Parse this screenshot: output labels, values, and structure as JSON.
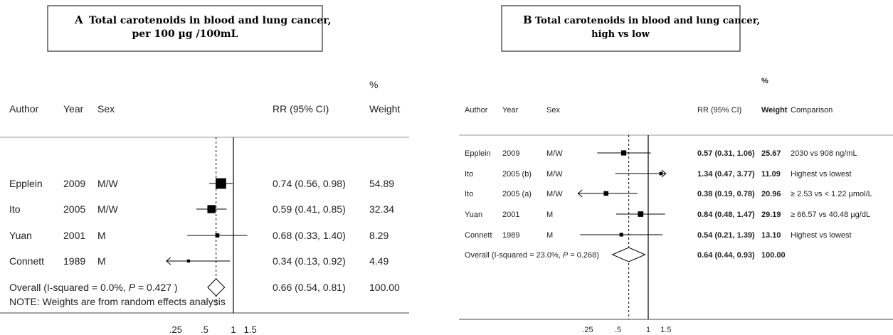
{
  "chart_data": [
    {
      "type": "forest",
      "title_line1": "Total carotenoids in blood and lung cancer,",
      "title_line2": "per 100 µg /100mL",
      "panel_label": "A",
      "headers": {
        "author": "Author",
        "year": "Year",
        "sex": "Sex",
        "rr": "RR (95% CI)",
        "weight_top": "%",
        "weight": "Weight"
      },
      "x_scale": "log",
      "x_ticks": [
        {
          "value": 0.25,
          "label": ".25"
        },
        {
          "value": 0.5,
          "label": ".5"
        },
        {
          "value": 1,
          "label": "1"
        },
        {
          "value": 1.5,
          "label": "1.5"
        }
      ],
      "x_range": [
        0.2,
        1.6
      ],
      "reference_line": 1,
      "studies": [
        {
          "author": "Epplein",
          "year": "2009",
          "sex": "M/W",
          "rr": 0.74,
          "lo": 0.56,
          "hi": 0.98,
          "rr_text": "0.74 (0.56, 0.98)",
          "weight": 54.89,
          "weight_text": "54.89"
        },
        {
          "author": "Ito",
          "year": "2005",
          "sex": "M/W",
          "rr": 0.59,
          "lo": 0.41,
          "hi": 0.85,
          "rr_text": "0.59 (0.41, 0.85)",
          "weight": 32.34,
          "weight_text": "32.34"
        },
        {
          "author": "Yuan",
          "year": "2001",
          "sex": "M",
          "rr": 0.68,
          "lo": 0.33,
          "hi": 1.4,
          "rr_text": "0.68 (0.33, 1.40)",
          "weight": 8.29,
          "weight_text": "8.29"
        },
        {
          "author": "Connett",
          "year": "1989",
          "sex": "M",
          "rr": 0.34,
          "lo": 0.13,
          "hi": 0.92,
          "rr_text": "0.34 (0.13, 0.92)",
          "weight": 4.49,
          "weight_text": "4.49"
        }
      ],
      "overall": {
        "label_pre": "Overall  (I-squared = 0.0%, ",
        "p_symbol": "P",
        "label_post": " = 0.427 )",
        "rr": 0.66,
        "lo": 0.54,
        "hi": 0.81,
        "rr_text": "0.66 (0.54, 0.81)",
        "weight_text": "100.00"
      },
      "note": "NOTE: Weights are from random effects analysis"
    },
    {
      "type": "forest",
      "title_line1": "Total carotenoids in blood and lung cancer,",
      "title_line2": "high vs low",
      "panel_label": "B",
      "headers": {
        "author": "Author",
        "year": "Year",
        "sex": "Sex",
        "rr": "RR (95% CI)",
        "weight_top": "%",
        "weight": "Weight",
        "comparison": "Comparison"
      },
      "x_scale": "log",
      "x_ticks": [
        {
          "value": 0.25,
          "label": ".25"
        },
        {
          "value": 0.5,
          "label": ".5"
        },
        {
          "value": 1,
          "label": "1"
        },
        {
          "value": 1.5,
          "label": "1.5"
        }
      ],
      "x_range": [
        0.2,
        1.6
      ],
      "reference_line": 1,
      "studies": [
        {
          "author": "Epplein",
          "year": "2009",
          "sex": "M/W",
          "rr": 0.57,
          "lo": 0.31,
          "hi": 1.06,
          "rr_text": "0.57 (0.31, 1.06)",
          "weight": 25.67,
          "weight_text": "25.67",
          "comparison": "2030 vs 908 ng/mL"
        },
        {
          "author": "Ito",
          "year": "2005 (b)",
          "sex": "M/W",
          "rr": 1.34,
          "lo": 0.47,
          "hi": 3.77,
          "rr_text": "1.34 (0.47, 3.77)",
          "weight": 11.09,
          "weight_text": "11.09",
          "comparison": "Highest vs lowest"
        },
        {
          "author": "Ito",
          "year": "2005 (a)",
          "sex": "M/W",
          "rr": 0.38,
          "lo": 0.19,
          "hi": 0.78,
          "rr_text": "0.38 (0.19, 0.78)",
          "weight": 20.96,
          "weight_text": "20.96",
          "comparison": "≥ 2.53 vs < 1.22 µmol/L"
        },
        {
          "author": "Yuan",
          "year": "2001",
          "sex": "M",
          "rr": 0.84,
          "lo": 0.48,
          "hi": 1.47,
          "rr_text": "0.84 (0.48, 1.47)",
          "weight": 29.19,
          "weight_text": "29.19",
          "comparison": "≥ 66.57  vs 40.48 µg/dL"
        },
        {
          "author": "Connett",
          "year": "1989",
          "sex": "M",
          "rr": 0.54,
          "lo": 0.21,
          "hi": 1.39,
          "rr_text": "0.54 (0.21, 1.39)",
          "weight": 13.1,
          "weight_text": "13.10",
          "comparison": "Highest vs lowest"
        }
      ],
      "overall": {
        "label_pre": "Overall  (I-squared = 23.0%, ",
        "p_symbol": "P",
        "label_post": " = 0.268)",
        "rr": 0.64,
        "lo": 0.44,
        "hi": 0.93,
        "rr_text": "0.64 (0.44, 0.93)",
        "weight_text": "100.00"
      }
    }
  ]
}
